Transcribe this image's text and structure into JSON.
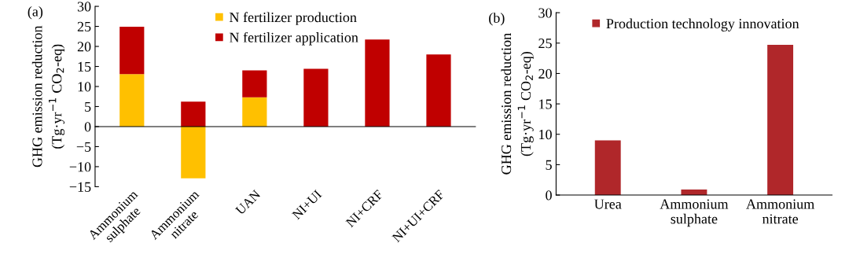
{
  "chart_data": [
    {
      "type": "bar",
      "stacked": true,
      "categories": [
        "Ammonium\nsulphate",
        "Ammonium\nnitrate",
        "UAN",
        "NI+UI",
        "NI+CRF",
        "NI+UI+CRF"
      ],
      "series": [
        {
          "name": "N fertilizer production",
          "color": "#ffc000",
          "values": [
            13.1,
            -12.9,
            7.3,
            null,
            null,
            null
          ]
        },
        {
          "name": "N fertilizer application",
          "color": "#c00000",
          "values": [
            11.8,
            6.2,
            6.7,
            14.4,
            21.7,
            18.0
          ]
        }
      ],
      "ylabel": "GHG emission reduction\n(Tg·yr$^{−1}$ CO$_{2}$-eq)",
      "ylim": [
        -15,
        30
      ],
      "yticks": [
        -15,
        -10,
        -5,
        0,
        5,
        10,
        15,
        20,
        25,
        30
      ],
      "annotations": [
        "(a)"
      ],
      "legend": "top"
    },
    {
      "type": "bar",
      "categories": [
        "Urea",
        "Ammonium\nsulphate",
        "Ammonium\nnitrate"
      ],
      "series": [
        {
          "name": "Production technology innovation",
          "color": "#b0272a",
          "values": [
            9.0,
            0.9,
            24.7
          ]
        }
      ],
      "ylabel": "GHG emission reduction\n(Tg·yr$^{−1}$ CO$_{2}$-eq)",
      "ylim": [
        0,
        30
      ],
      "yticks": [
        0,
        5,
        10,
        15,
        20,
        25,
        30
      ],
      "annotations": [
        "(b)"
      ],
      "legend": "top"
    }
  ]
}
